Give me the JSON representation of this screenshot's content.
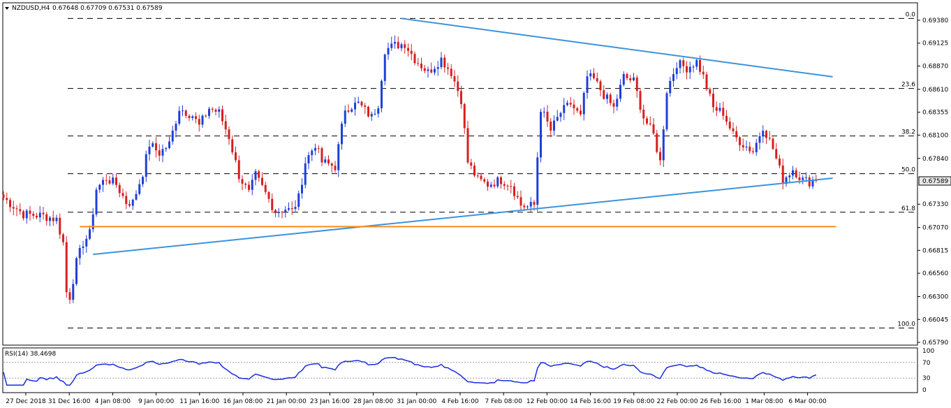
{
  "header": {
    "symbol": "NZDUSD,H4",
    "ohlc": "0.67648 0.67709 0.67531 0.67589"
  },
  "rsi_header": "RSI(14) 38.4698",
  "colors": {
    "bull": "#1f3fd8",
    "bear": "#d81f1f",
    "trendline": "#3b93db",
    "support": "#ff8c1a",
    "rsi": "#1a2ae0",
    "fib": "#000000",
    "current_price_bg": "#e8e8e8"
  },
  "chart_data": {
    "type": "candlestick",
    "price_ticks": [
      "0.69380",
      "0.69125",
      "0.68870",
      "0.68610",
      "0.68355",
      "0.68100",
      "0.67840",
      "0.67589",
      "0.67330",
      "0.67070",
      "0.66815",
      "0.66560",
      "0.66300",
      "0.66045",
      "0.65790"
    ],
    "current_price": "0.67589",
    "ylim": [
      0.6579,
      0.6938
    ],
    "x_labels": [
      "27 Dec 2018",
      "31 Dec 16:00",
      "4 Jan 08:00",
      "9 Jan 00:00",
      "11 Jan 16:00",
      "16 Jan 08:00",
      "21 Jan 00:00",
      "23 Jan 16:00",
      "28 Jan 08:00",
      "31 Jan 00:00",
      "4 Feb 16:00",
      "7 Feb 08:00",
      "12 Feb 00:00",
      "14 Feb 16:00",
      "19 Feb 08:00",
      "22 Feb 00:00",
      "26 Feb 16:00",
      "1 Mar 08:00",
      "6 Mar 00:00"
    ],
    "fib_levels": [
      {
        "label": "0.0",
        "price": 0.694
      },
      {
        "label": "23.6",
        "price": 0.6862
      },
      {
        "label": "38.2",
        "price": 0.6809
      },
      {
        "label": "50.0",
        "price": 0.6767
      },
      {
        "label": "61.8",
        "price": 0.6724
      },
      {
        "label": "100.0",
        "price": 0.6595
      }
    ],
    "trendlines": [
      {
        "name": "upper",
        "from": {
          "t": 120,
          "p": 0.694
        },
        "to": {
          "t": 250,
          "p": 0.6875
        }
      },
      {
        "name": "lower",
        "from": {
          "t": 27,
          "p": 0.6677
        },
        "to": {
          "t": 250,
          "p": 0.6762
        }
      },
      {
        "name": "support",
        "from": {
          "t": 23,
          "p": 0.6708
        },
        "to": {
          "t": 251,
          "p": 0.6708
        }
      }
    ],
    "anchors": [
      [
        0,
        0.674
      ],
      [
        6,
        0.6722
      ],
      [
        12,
        0.672
      ],
      [
        16,
        0.6716
      ],
      [
        18,
        0.669
      ],
      [
        19,
        0.6635
      ],
      [
        20,
        0.663
      ],
      [
        22,
        0.6668
      ],
      [
        24,
        0.669
      ],
      [
        26,
        0.67
      ],
      [
        28,
        0.675
      ],
      [
        31,
        0.6762
      ],
      [
        34,
        0.6755
      ],
      [
        37,
        0.6735
      ],
      [
        39,
        0.6735
      ],
      [
        42,
        0.6768
      ],
      [
        44,
        0.68
      ],
      [
        47,
        0.679
      ],
      [
        50,
        0.68
      ],
      [
        53,
        0.684
      ],
      [
        57,
        0.6832
      ],
      [
        59,
        0.682
      ],
      [
        62,
        0.684
      ],
      [
        65,
        0.6835
      ],
      [
        68,
        0.6808
      ],
      [
        71,
        0.6765
      ],
      [
        74,
        0.6745
      ],
      [
        76,
        0.6765
      ],
      [
        79,
        0.6745
      ],
      [
        82,
        0.6725
      ],
      [
        85,
        0.6728
      ],
      [
        87,
        0.6725
      ],
      [
        89,
        0.674
      ],
      [
        91,
        0.678
      ],
      [
        94,
        0.68
      ],
      [
        96,
        0.678
      ],
      [
        100,
        0.6775
      ],
      [
        103,
        0.684
      ],
      [
        107,
        0.6845
      ],
      [
        111,
        0.683
      ],
      [
        113,
        0.6845
      ],
      [
        115,
        0.6905
      ],
      [
        118,
        0.691
      ],
      [
        121,
        0.6912
      ],
      [
        124,
        0.6895
      ],
      [
        128,
        0.688
      ],
      [
        132,
        0.6895
      ],
      [
        135,
        0.688
      ],
      [
        138,
        0.685
      ],
      [
        140,
        0.678
      ],
      [
        143,
        0.676
      ],
      [
        146,
        0.6755
      ],
      [
        150,
        0.676
      ],
      [
        153,
        0.6755
      ],
      [
        156,
        0.6732
      ],
      [
        158,
        0.673
      ],
      [
        160,
        0.6732
      ],
      [
        162,
        0.684
      ],
      [
        165,
        0.6815
      ],
      [
        168,
        0.6835
      ],
      [
        171,
        0.6845
      ],
      [
        174,
        0.683
      ],
      [
        176,
        0.6875
      ],
      [
        178,
        0.6872
      ],
      [
        181,
        0.6855
      ],
      [
        184,
        0.684
      ],
      [
        187,
        0.6875
      ],
      [
        190,
        0.687
      ],
      [
        193,
        0.683
      ],
      [
        196,
        0.681
      ],
      [
        198,
        0.678
      ],
      [
        200,
        0.686
      ],
      [
        203,
        0.689
      ],
      [
        206,
        0.6885
      ],
      [
        209,
        0.6892
      ],
      [
        211,
        0.6875
      ],
      [
        214,
        0.684
      ],
      [
        217,
        0.6835
      ],
      [
        220,
        0.681
      ],
      [
        223,
        0.68
      ],
      [
        226,
        0.6792
      ],
      [
        229,
        0.682
      ],
      [
        232,
        0.6795
      ],
      [
        235,
        0.676
      ],
      [
        238,
        0.6772
      ],
      [
        241,
        0.676
      ],
      [
        243,
        0.6758
      ],
      [
        245,
        0.6762
      ]
    ],
    "rsi": {
      "label": "RSI(14)",
      "current": 38.4698,
      "levels": [
        70,
        30
      ],
      "ticks": [
        "100",
        "70",
        "30",
        "0"
      ],
      "ylim": [
        0,
        100
      ]
    }
  }
}
